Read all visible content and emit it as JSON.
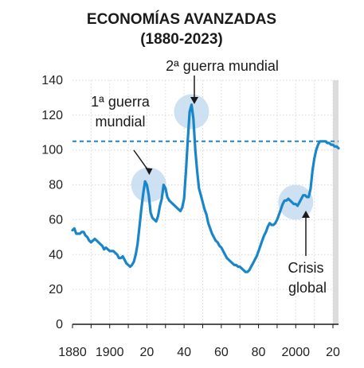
{
  "chart_data": {
    "type": "line",
    "title": [
      "ECONOMÍAS AVANZADAS",
      "(1880-2023)"
    ],
    "xlabel": "",
    "ylabel": "",
    "xlim": [
      1880,
      2023
    ],
    "ylim": [
      0,
      140
    ],
    "y_ticks": [
      0,
      20,
      40,
      60,
      80,
      100,
      120,
      140
    ],
    "x_ticks": [
      {
        "value": 1880,
        "label": "1880"
      },
      {
        "value": 1900,
        "label": "1900"
      },
      {
        "value": 1920,
        "label": "20"
      },
      {
        "value": 1940,
        "label": "40"
      },
      {
        "value": 1960,
        "label": "60"
      },
      {
        "value": 1980,
        "label": "80"
      },
      {
        "value": 2000,
        "label": "2000"
      },
      {
        "value": 2020,
        "label": "20"
      }
    ],
    "grid": true,
    "reference_line": {
      "y": 105,
      "style": "dashed"
    },
    "shaded_period": [
      2020,
      2023
    ],
    "series": [
      {
        "name": "",
        "color": "#1a86c8",
        "x": [
          1880,
          1881,
          1882,
          1883,
          1884,
          1885,
          1886,
          1887,
          1888,
          1889,
          1890,
          1891,
          1892,
          1893,
          1894,
          1895,
          1896,
          1897,
          1898,
          1899,
          1900,
          1901,
          1902,
          1903,
          1904,
          1905,
          1906,
          1907,
          1908,
          1909,
          1910,
          1911,
          1912,
          1913,
          1914,
          1915,
          1916,
          1917,
          1918,
          1919,
          1920,
          1921,
          1922,
          1923,
          1924,
          1925,
          1926,
          1927,
          1928,
          1929,
          1930,
          1931,
          1932,
          1933,
          1934,
          1935,
          1936,
          1937,
          1938,
          1939,
          1940,
          1941,
          1942,
          1943,
          1944,
          1945,
          1946,
          1947,
          1948,
          1949,
          1950,
          1951,
          1952,
          1953,
          1954,
          1955,
          1956,
          1957,
          1958,
          1959,
          1960,
          1961,
          1962,
          1963,
          1964,
          1965,
          1966,
          1967,
          1968,
          1969,
          1970,
          1971,
          1972,
          1973,
          1974,
          1975,
          1976,
          1977,
          1978,
          1979,
          1980,
          1981,
          1982,
          1983,
          1984,
          1985,
          1986,
          1987,
          1988,
          1989,
          1990,
          1991,
          1992,
          1993,
          1994,
          1995,
          1996,
          1997,
          1998,
          1999,
          2000,
          2001,
          2002,
          2003,
          2004,
          2005,
          2006,
          2007,
          2008,
          2009,
          2010,
          2011,
          2012,
          2013,
          2014,
          2015,
          2016,
          2017,
          2018,
          2019,
          2020,
          2021,
          2022,
          2023
        ],
        "values": [
          54,
          55,
          52,
          52,
          52,
          53,
          53,
          51,
          50,
          48,
          47,
          48,
          49,
          48,
          47,
          46,
          45,
          43,
          44,
          43,
          42,
          42,
          42,
          41,
          40,
          38,
          38,
          39,
          37,
          35,
          34,
          33,
          34,
          36,
          40,
          46,
          56,
          66,
          75,
          82,
          80,
          74,
          64,
          61,
          60,
          59,
          62,
          68,
          72,
          80,
          78,
          73,
          71,
          70,
          69,
          68,
          67,
          66,
          65,
          67,
          72,
          88,
          106,
          122,
          126,
          118,
          100,
          88,
          78,
          74,
          70,
          66,
          63,
          58,
          55,
          52,
          50,
          48,
          47,
          45,
          44,
          42,
          40,
          38,
          37,
          36,
          35,
          34,
          34,
          33,
          33,
          32,
          31,
          30,
          30,
          31,
          33,
          35,
          37,
          39,
          42,
          45,
          48,
          51,
          53,
          56,
          58,
          57,
          57,
          58,
          60,
          63,
          66,
          69,
          71,
          71,
          72,
          71,
          70,
          69,
          69,
          68,
          70,
          72,
          74,
          74,
          73,
          73,
          78,
          88,
          95,
          100,
          103,
          105,
          105,
          105,
          105,
          104,
          104,
          103,
          103,
          102,
          102,
          101
        ]
      }
    ],
    "annotations": [
      {
        "lines": [
          "1ª guerra",
          "mundial"
        ],
        "target": [
          1920,
          82
        ]
      },
      {
        "lines": [
          "2ª guerra mundial"
        ],
        "target": [
          1944,
          126
        ]
      },
      {
        "lines": [
          "Crisis",
          "global"
        ],
        "target": [
          2003,
          73
        ]
      }
    ],
    "highlight_circles": [
      {
        "x": 1921,
        "y": 80
      },
      {
        "x": 1944,
        "y": 122
      },
      {
        "x": 2000,
        "y": 70
      }
    ]
  }
}
